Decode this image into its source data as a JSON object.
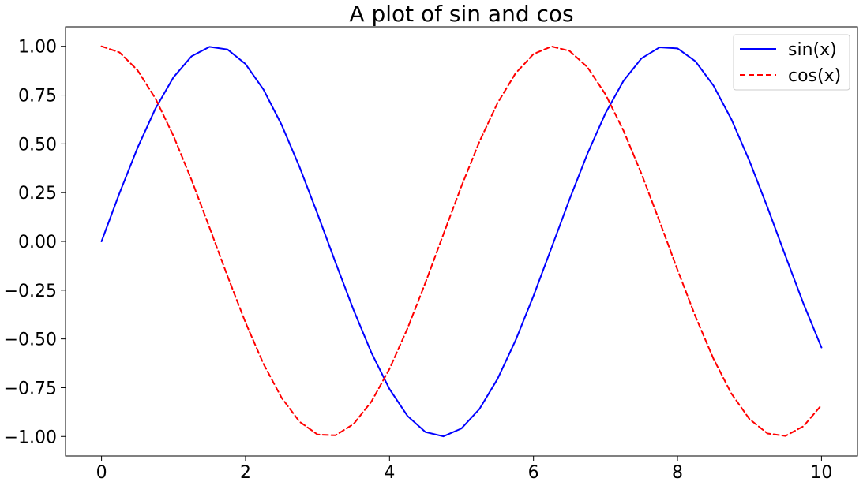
{
  "chart_data": {
    "type": "line",
    "title": "A plot of sin and cos",
    "xlabel": "",
    "ylabel": "",
    "xlim": [
      -0.5,
      10.5
    ],
    "ylim": [
      -1.1,
      1.1
    ],
    "x_ticks": [
      {
        "value": 0,
        "label": "0"
      },
      {
        "value": 2,
        "label": "2"
      },
      {
        "value": 4,
        "label": "4"
      },
      {
        "value": 6,
        "label": "6"
      },
      {
        "value": 8,
        "label": "8"
      },
      {
        "value": 10,
        "label": "10"
      }
    ],
    "y_ticks": [
      {
        "value": 1.0,
        "label": "1.00"
      },
      {
        "value": 0.75,
        "label": "0.75"
      },
      {
        "value": 0.5,
        "label": "0.50"
      },
      {
        "value": 0.25,
        "label": "0.25"
      },
      {
        "value": 0.0,
        "label": "0.00"
      },
      {
        "value": -0.25,
        "label": "−0.25"
      },
      {
        "value": -0.5,
        "label": "−0.50"
      },
      {
        "value": -0.75,
        "label": "−0.75"
      },
      {
        "value": -1.0,
        "label": "−1.00"
      }
    ],
    "grid": false,
    "legend_position": "top-right",
    "series": [
      {
        "name": "sin(x)",
        "color": "#0000ff",
        "line_style": "solid",
        "x": [
          0,
          0.25,
          0.5,
          0.75,
          1.0,
          1.25,
          1.5,
          1.75,
          2.0,
          2.25,
          2.5,
          2.75,
          3.0,
          3.25,
          3.5,
          3.75,
          4.0,
          4.25,
          4.5,
          4.75,
          5.0,
          5.25,
          5.5,
          5.75,
          6.0,
          6.25,
          6.5,
          6.75,
          7.0,
          7.25,
          7.5,
          7.75,
          8.0,
          8.25,
          8.5,
          8.75,
          9.0,
          9.25,
          9.5,
          9.75,
          10.0
        ],
        "y": [
          0.0,
          0.2474,
          0.4794,
          0.6816,
          0.8415,
          0.949,
          0.9975,
          0.984,
          0.9093,
          0.7781,
          0.5985,
          0.3817,
          0.1411,
          -0.1082,
          -0.3508,
          -0.5716,
          -0.7568,
          -0.895,
          -0.9775,
          -0.9993,
          -0.9589,
          -0.8589,
          -0.7055,
          -0.5083,
          -0.2794,
          -0.0332,
          0.2151,
          0.45,
          0.657,
          0.8231,
          0.938,
          0.9946,
          0.9894,
          0.9228,
          0.7985,
          0.6247,
          0.4121,
          0.1743,
          -0.0752,
          -0.3195,
          -0.544
        ]
      },
      {
        "name": "cos(x)",
        "color": "#ff0000",
        "line_style": "dashed",
        "x": [
          0,
          0.25,
          0.5,
          0.75,
          1.0,
          1.25,
          1.5,
          1.75,
          2.0,
          2.25,
          2.5,
          2.75,
          3.0,
          3.25,
          3.5,
          3.75,
          4.0,
          4.25,
          4.5,
          4.75,
          5.0,
          5.25,
          5.5,
          5.75,
          6.0,
          6.25,
          6.5,
          6.75,
          7.0,
          7.25,
          7.5,
          7.75,
          8.0,
          8.25,
          8.5,
          8.75,
          9.0,
          9.25,
          9.5,
          9.75,
          10.0
        ],
        "y": [
          1.0,
          0.9689,
          0.8776,
          0.7317,
          0.5403,
          0.3153,
          0.0707,
          -0.1782,
          -0.4161,
          -0.6282,
          -0.8011,
          -0.9243,
          -0.99,
          -0.9941,
          -0.9365,
          -0.8206,
          -0.6536,
          -0.4461,
          -0.2108,
          0.0376,
          0.2837,
          0.5121,
          0.7087,
          0.8612,
          0.9602,
          0.9994,
          0.9766,
          0.893,
          0.7539,
          0.5679,
          0.3466,
          0.1036,
          -0.1455,
          -0.3853,
          -0.602,
          -0.7809,
          -0.9111,
          -0.9847,
          -0.9972,
          -0.9477,
          -0.8391
        ]
      }
    ]
  }
}
